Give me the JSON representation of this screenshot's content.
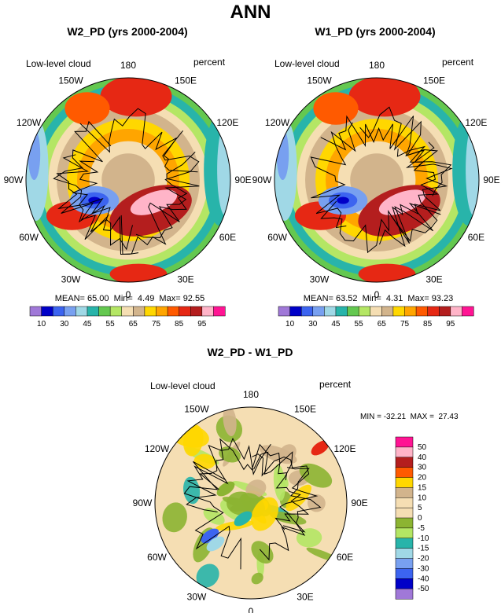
{
  "chart_data": {
    "type": "heatmap",
    "title": "ANN",
    "panels": [
      {
        "id": "w2",
        "title": "W2_PD (yrs 2000-2004)",
        "left_label": "Low-level cloud",
        "right_label": "percent",
        "longitudes": [
          "180",
          "150E",
          "120E",
          "90E",
          "60E",
          "30E",
          "0",
          "30W",
          "60W",
          "90W",
          "120W",
          "150W"
        ],
        "stats": "MEAN= 65.00  Min=  4.49  Max= 92.55",
        "mean": 65.0,
        "min": 4.49,
        "max": 92.55,
        "colorbar_ticks": [
          "10",
          "30",
          "45",
          "55",
          "65",
          "75",
          "85",
          "95"
        ],
        "colorbar_colors": [
          "#a078d8",
          "#0000c8",
          "#3c64f0",
          "#78a0f0",
          "#a0d8e6",
          "#28b4aa",
          "#64c850",
          "#b4e664",
          "#f5deb3",
          "#d2b48c",
          "#ffd700",
          "#ffa500",
          "#ff5a00",
          "#e62814",
          "#b41e1e",
          "#ffb4c8",
          "#ff1493"
        ]
      },
      {
        "id": "w1",
        "title": "W1_PD (yrs 2000-2004)",
        "left_label": "Low-level cloud",
        "right_label": "percent",
        "longitudes": [
          "180",
          "150E",
          "120E",
          "90E",
          "60E",
          "30E",
          "0",
          "30W",
          "60W",
          "90W",
          "120W",
          "150W"
        ],
        "stats": "MEAN= 63.52  Min=  4.31  Max= 93.23",
        "mean": 63.52,
        "min": 4.31,
        "max": 93.23,
        "colorbar_ticks": [
          "10",
          "30",
          "45",
          "55",
          "65",
          "75",
          "85",
          "95"
        ],
        "colorbar_colors": [
          "#a078d8",
          "#0000c8",
          "#3c64f0",
          "#78a0f0",
          "#a0d8e6",
          "#28b4aa",
          "#64c850",
          "#b4e664",
          "#f5deb3",
          "#d2b48c",
          "#ffd700",
          "#ffa500",
          "#ff5a00",
          "#e62814",
          "#b41e1e",
          "#ffb4c8",
          "#ff1493"
        ]
      },
      {
        "id": "diff",
        "title": "W2_PD - W1_PD",
        "left_label": "Low-level cloud",
        "right_label": "percent",
        "longitudes": [
          "180",
          "150E",
          "120E",
          "90E",
          "60E",
          "30E",
          "0",
          "30W",
          "60W",
          "90W",
          "120W",
          "150W"
        ],
        "stats": "MIN = -32.21  MAX =  27.43",
        "min": -32.21,
        "max": 27.43,
        "colorbar_ticks": [
          "50",
          "40",
          "30",
          "20",
          "15",
          "10",
          "5",
          "0",
          "-5",
          "-10",
          "-15",
          "-20",
          "-30",
          "-40",
          "-50"
        ],
        "colorbar_colors": [
          "#ff1493",
          "#ffb4c8",
          "#b41e1e",
          "#ff5a00",
          "#ffd700",
          "#d2b48c",
          "#f5deb3",
          "#f5deb3",
          "#8cb432",
          "#b4e664",
          "#28b4aa",
          "#a0d8e6",
          "#78a0f0",
          "#3c64f0",
          "#0000c8",
          "#a078d8"
        ]
      }
    ]
  }
}
